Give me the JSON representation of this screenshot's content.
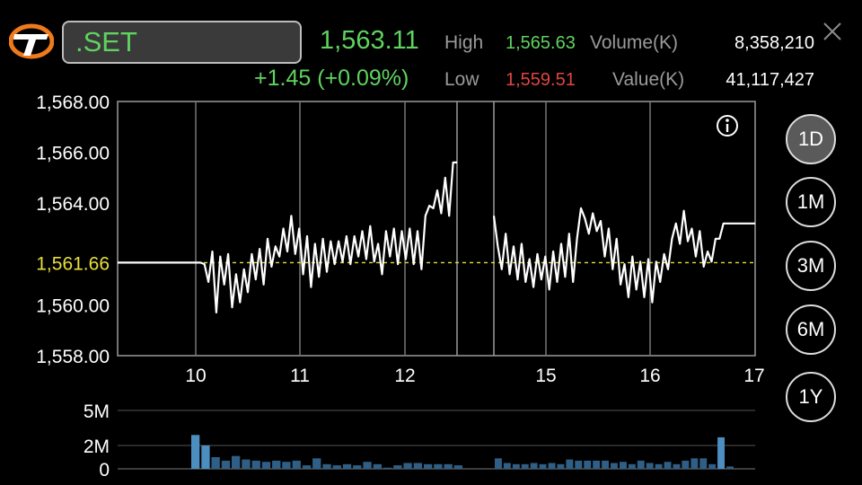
{
  "header": {
    "symbol": ".SET",
    "last_price": "1,563.11",
    "change": "+1.45 (+0.09%)",
    "high_label": "High",
    "high_value": "1,565.63",
    "low_label": "Low",
    "low_value": "1,559.51",
    "volume_label": "Volume(K)",
    "volume_value": "8,358,210",
    "value_label": "Value(K)",
    "value_value": "41,117,427"
  },
  "colors": {
    "up": "#5fd35f",
    "down": "#e0453f",
    "baseline": "#e8df3a",
    "volume_bar": "#2f5f86",
    "volume_highlight": "#4d8ec0"
  },
  "ranges": {
    "items": [
      "1D",
      "1M",
      "3M",
      "6M",
      "1Y"
    ],
    "active": "1D"
  },
  "icons": {
    "logo": "set-logo",
    "info": "info-icon",
    "close": "close-icon"
  },
  "chart_data": [
    {
      "type": "line",
      "ylim": [
        1558,
        1568
      ],
      "y_ticks": [
        "1,558.00",
        "1,560.00",
        "1,562.00",
        "1,564.00",
        "1,566.00",
        "1,568.00"
      ],
      "y_tick_values": [
        1558,
        1560,
        1562,
        1564,
        1566,
        1568
      ],
      "reference_value": 1561.66,
      "reference_label": "1,561.66",
      "x_ticks": [
        "10",
        "11",
        "12",
        "15",
        "16",
        "17"
      ],
      "sessions": [
        [
          1561.66,
          1561.66,
          1561.66,
          1561.66,
          1561.66,
          1561.66,
          1561.66,
          1561.66,
          1561.66,
          1561.66,
          1561.66,
          1561.66,
          1561.66,
          1561.66,
          1561.66,
          1561.66,
          1561.66,
          1561.66,
          1561.66,
          1561.66,
          1561.66,
          1561.66,
          1561.6,
          1560.9,
          1562.1,
          1559.7,
          1561.9,
          1560.8,
          1562.0,
          1559.9,
          1561.2,
          1560.1,
          1561.4,
          1560.5,
          1562.0,
          1561.0,
          1562.2,
          1560.8,
          1562.6,
          1561.5,
          1562.3,
          1561.9,
          1563.0,
          1562.1,
          1563.5,
          1562.0,
          1563.0,
          1561.2,
          1562.7,
          1560.7,
          1562.4,
          1561.1,
          1562.6,
          1561.3,
          1562.5,
          1561.6,
          1562.5,
          1561.7,
          1562.7,
          1561.6,
          1562.7,
          1561.9,
          1562.9,
          1561.8,
          1563.1,
          1561.7,
          1562.4,
          1561.2,
          1562.9,
          1561.9,
          1563.0,
          1561.6,
          1562.9,
          1561.8,
          1563.0,
          1561.6,
          1562.9,
          1561.4,
          1563.5,
          1563.9,
          1563.8,
          1564.5,
          1563.6,
          1565.0,
          1563.5,
          1565.6,
          1565.6
        ],
        [
          1563.5,
          1562.3,
          1561.4,
          1562.8,
          1561.2,
          1562.3,
          1561.0,
          1562.4,
          1560.9,
          1561.8,
          1560.7,
          1562.0,
          1561.0,
          1561.9,
          1560.6,
          1562.1,
          1560.9,
          1562.4,
          1561.1,
          1562.8,
          1560.9,
          1562.6,
          1563.8,
          1563.4,
          1562.8,
          1563.6,
          1562.9,
          1563.3,
          1561.9,
          1563.0,
          1561.4,
          1562.6,
          1560.8,
          1561.6,
          1560.3,
          1561.9,
          1560.6,
          1561.7,
          1560.3,
          1561.8,
          1560.1,
          1561.7,
          1560.9,
          1562.0,
          1561.4,
          1562.6,
          1563.2,
          1562.4,
          1563.7,
          1562.5,
          1563.0,
          1561.9,
          1562.9,
          1561.5,
          1562.1,
          1561.7,
          1562.6,
          1562.6,
          1563.2,
          1563.2,
          1563.2,
          1563.2,
          1563.2,
          1563.2,
          1563.2,
          1563.2,
          1563.2
        ]
      ]
    },
    {
      "type": "bar",
      "ylim": [
        0,
        5
      ],
      "y_unit": "M",
      "y_ticks": [
        "0",
        "2M",
        "5M"
      ],
      "y_tick_values": [
        0,
        2,
        5
      ],
      "sessions": [
        [
          2.9,
          2.0,
          1.0,
          0.7,
          1.1,
          0.8,
          0.7,
          0.6,
          0.7,
          0.6,
          0.7,
          0.3,
          0.9,
          0.4,
          0.3,
          0.4,
          0.3,
          0.6,
          0.4,
          0.1,
          0.3,
          0.5,
          0.5,
          0.4,
          0.4,
          0.4,
          0.3
        ],
        [
          0.9,
          0.5,
          0.4,
          0.4,
          0.5,
          0.4,
          0.5,
          0.4,
          0.8,
          0.7,
          0.7,
          0.7,
          0.7,
          0.5,
          0.6,
          0.4,
          0.7,
          0.5,
          0.4,
          0.6,
          0.4,
          0.7,
          0.9,
          0.9,
          0.4,
          2.7,
          0.2
        ]
      ]
    }
  ]
}
